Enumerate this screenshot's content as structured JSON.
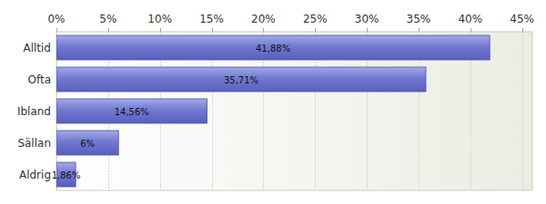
{
  "chart_data": {
    "type": "bar",
    "orientation": "horizontal",
    "categories": [
      "Alltid",
      "Ofta",
      "Ibland",
      "Sällan",
      "Aldrig"
    ],
    "values": [
      41.88,
      35.71,
      14.56,
      6,
      1.86
    ],
    "value_labels": [
      "41,88%",
      "35,71%",
      "14,56%",
      "6%",
      "1,86%"
    ],
    "color": "#7179d2",
    "xlim": [
      0,
      46
    ],
    "xticks": [
      {
        "value": 0,
        "label": "0%"
      },
      {
        "value": 5,
        "label": "5%"
      },
      {
        "value": 10,
        "label": "10%"
      },
      {
        "value": 15,
        "label": "15%"
      },
      {
        "value": 20,
        "label": "20%"
      },
      {
        "value": 25,
        "label": "25%"
      },
      {
        "value": 30,
        "label": "30%"
      },
      {
        "value": 35,
        "label": "35%"
      },
      {
        "value": 40,
        "label": "40%"
      },
      {
        "value": 45,
        "label": "45%"
      }
    ],
    "grid": true,
    "data_labels": true
  }
}
